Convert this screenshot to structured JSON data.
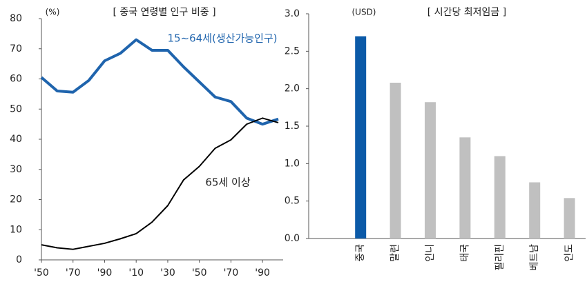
{
  "chart_data": [
    {
      "type": "line",
      "title": "[ 중국 연령별 인구 비중 ]",
      "y_unit": "(%)",
      "x": [
        1950,
        1960,
        1970,
        1980,
        1990,
        2000,
        2010,
        2020,
        2030,
        2040,
        2050,
        2060,
        2070,
        2080,
        2090,
        2100
      ],
      "xlim": [
        1950,
        2100
      ],
      "xticks": [
        {
          "value": 1950,
          "label": "'50"
        },
        {
          "value": 1970,
          "label": "'70"
        },
        {
          "value": 1990,
          "label": "'90"
        },
        {
          "value": 2010,
          "label": "'10"
        },
        {
          "value": 2030,
          "label": "'30"
        },
        {
          "value": 2050,
          "label": "'50"
        },
        {
          "value": 2070,
          "label": "'70"
        },
        {
          "value": 2090,
          "label": "'90"
        }
      ],
      "ylim": [
        0,
        80
      ],
      "yticks": [
        0,
        10,
        20,
        30,
        40,
        50,
        60,
        70,
        80
      ],
      "series": [
        {
          "name": "15~64세(생산가능인구)",
          "color": "#1f64ad",
          "values": [
            60.5,
            56,
            55.6,
            59.5,
            66,
            68.5,
            73,
            69.5,
            69.5,
            64,
            59,
            54,
            52.5,
            47,
            45,
            46.7
          ]
        },
        {
          "name": "65세 이상",
          "color": "#000000",
          "values": [
            5,
            4,
            3.5,
            4.5,
            5.5,
            7,
            8.7,
            12.5,
            18,
            26.5,
            31,
            37,
            39.8,
            45,
            47,
            45.5
          ]
        }
      ]
    },
    {
      "type": "bar",
      "title": "[ 시간당 최저임금 ]",
      "y_unit": "(USD)",
      "categories": [
        "중국",
        "말련",
        "인니",
        "태국",
        "필리핀",
        "베트남",
        "인도"
      ],
      "values": [
        2.7,
        2.08,
        1.82,
        1.35,
        1.1,
        0.75,
        0.54
      ],
      "colors": [
        "#0b5aa8",
        "#c0c0c0",
        "#c0c0c0",
        "#c0c0c0",
        "#c0c0c0",
        "#c0c0c0",
        "#c0c0c0"
      ],
      "ylim": [
        0,
        3
      ],
      "yticks": [
        {
          "value": 0,
          "label": "0.0"
        },
        {
          "value": 0.5,
          "label": "0.5"
        },
        {
          "value": 1,
          "label": "1.0"
        },
        {
          "value": 1.5,
          "label": "1.5"
        },
        {
          "value": 2,
          "label": "2.0"
        },
        {
          "value": 2.5,
          "label": "2.5"
        },
        {
          "value": 3,
          "label": "3.0"
        }
      ]
    }
  ]
}
